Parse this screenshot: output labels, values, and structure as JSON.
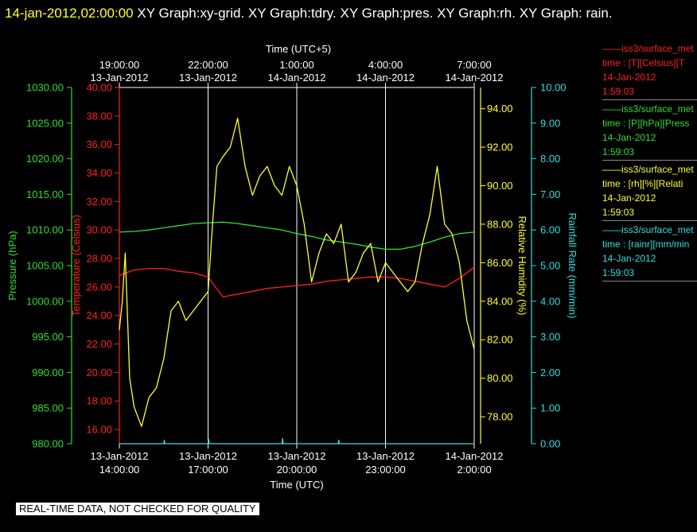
{
  "header": {
    "datetime": "14-jan-2012,02:00:00",
    "title": "XY Graph:xy-grid.  XY Graph:tdry.  XY Graph:pres.  XY Graph:rh.  XY Graph: rain."
  },
  "legend": [
    {
      "lines": [
        "——iss3/surface_met",
        "time : [T][Celsius][T",
        "14-Jan-2012",
        "1:59:03"
      ],
      "color": "#ff2020"
    },
    {
      "lines": [
        "——iss3/surface_met",
        "time : [P][hPa][Press",
        "14-Jan-2012",
        "1:59:03"
      ],
      "color": "#33dd33"
    },
    {
      "lines": [
        "——iss3/surface_met",
        "time : [rh][%][Relati",
        "14-Jan-2012",
        "1:59:03"
      ],
      "color": "#ffff33"
    },
    {
      "lines": [
        "——iss3/surface_met",
        "time : [rainr][mm/min",
        "14-Jan-2012",
        "1:59:03"
      ],
      "color": "#33dddd"
    }
  ],
  "disclaimer": "REAL-TIME DATA, NOT CHECKED FOR QUALITY",
  "colors": {
    "temperature": "#ff2020",
    "pressure": "#33dd33",
    "humidity": "#ffff33",
    "rain": "#33dddd",
    "grid": "#ffffff"
  },
  "chart_data": {
    "type": "line",
    "x_unit": "hours since 13-Jan-2012 14:00 UTC",
    "xlim": [
      0,
      12
    ],
    "x_grid": [
      3,
      6,
      9
    ],
    "bottom_axis": {
      "title": "Time (UTC)",
      "ticks": [
        {
          "x": 0,
          "date": "13-Jan-2012",
          "time": "14:00:00"
        },
        {
          "x": 3,
          "date": "13-Jan-2012",
          "time": "17:00:00"
        },
        {
          "x": 6,
          "date": "13-Jan-2012",
          "time": "20:00:00"
        },
        {
          "x": 9,
          "date": "13-Jan-2012",
          "time": "23:00:00"
        },
        {
          "x": 12,
          "date": "14-Jan-2012",
          "time": "2:00:00"
        }
      ]
    },
    "top_axis": {
      "title": "Time (UTC+5)",
      "ticks": [
        {
          "x": 0,
          "time": "19:00:00",
          "date": "13-Jan-2012"
        },
        {
          "x": 3,
          "time": "22:00:00",
          "date": "13-Jan-2012"
        },
        {
          "x": 6,
          "time": "1:00:00",
          "date": "14-Jan-2012"
        },
        {
          "x": 9,
          "time": "4:00:00",
          "date": "14-Jan-2012"
        },
        {
          "x": 12,
          "time": "7:00:00",
          "date": "14-Jan-2012"
        }
      ]
    },
    "axes": {
      "pressure": {
        "label": "Pressure (hPa)",
        "ylim": [
          980,
          1030
        ],
        "ticks": [
          "980.00",
          "985.00",
          "990.00",
          "995.00",
          "1000.00",
          "1005.00",
          "1010.00",
          "1015.00",
          "1020.00",
          "1025.00",
          "1030.00"
        ]
      },
      "temperature": {
        "label": "Temperature (Celsius)",
        "ylim": [
          15,
          40
        ],
        "ticks": [
          "16.00",
          "18.00",
          "20.00",
          "22.00",
          "24.00",
          "26.00",
          "28.00",
          "30.00",
          "32.00",
          "34.00",
          "36.00",
          "38.00",
          "40.00"
        ]
      },
      "humidity": {
        "label": "Relative Humidity (%)",
        "ylim": [
          76.6,
          95.1
        ],
        "ticks": [
          "78.00",
          "80.00",
          "82.00",
          "84.00",
          "86.00",
          "88.00",
          "90.00",
          "92.00",
          "94.00"
        ]
      },
      "rain": {
        "label": "Rainfall Rate (mm/min)",
        "ylim": [
          0,
          10
        ],
        "ticks": [
          "0.00",
          "1.00",
          "2.00",
          "3.00",
          "4.00",
          "5.00",
          "6.00",
          "7.00",
          "8.00",
          "9.00",
          "10.00"
        ]
      }
    },
    "series": [
      {
        "name": "iss3/surface_met T",
        "axis": "temperature",
        "x": [
          0,
          0.5,
          1,
          1.5,
          2,
          2.5,
          3,
          3.5,
          4,
          4.5,
          5,
          5.5,
          6,
          6.5,
          7,
          7.5,
          8,
          8.5,
          9,
          9.5,
          10,
          10.5,
          11,
          11.5,
          12
        ],
        "y": [
          26.8,
          27.2,
          27.3,
          27.3,
          27.1,
          27.0,
          26.7,
          25.3,
          25.5,
          25.7,
          25.9,
          26.0,
          26.1,
          26.2,
          26.4,
          26.5,
          26.6,
          26.7,
          26.7,
          26.6,
          26.4,
          26.2,
          26.0,
          26.6,
          27.4
        ]
      },
      {
        "name": "iss3/surface_met P",
        "axis": "pressure",
        "x": [
          0,
          0.5,
          1,
          1.5,
          2,
          2.5,
          3,
          3.5,
          4,
          4.5,
          5,
          5.5,
          6,
          6.5,
          7,
          7.5,
          8,
          8.5,
          9,
          9.5,
          10,
          10.5,
          11,
          11.5,
          12
        ],
        "y": [
          1009.7,
          1009.8,
          1010.0,
          1010.3,
          1010.6,
          1010.9,
          1011.0,
          1011.1,
          1010.9,
          1010.6,
          1010.3,
          1010.0,
          1009.5,
          1009.1,
          1008.6,
          1008.3,
          1008.0,
          1007.6,
          1007.3,
          1007.3,
          1007.7,
          1008.3,
          1009.0,
          1009.5,
          1009.7
        ]
      },
      {
        "name": "iss3/surface_met rh",
        "axis": "humidity",
        "x": [
          0,
          0.1,
          0.2,
          0.35,
          0.5,
          0.75,
          1,
          1.25,
          1.5,
          1.75,
          2,
          2.25,
          2.5,
          2.75,
          3,
          3.15,
          3.3,
          3.5,
          3.75,
          4,
          4.25,
          4.5,
          4.75,
          5,
          5.25,
          5.5,
          5.75,
          6,
          6.25,
          6.5,
          6.75,
          7,
          7.25,
          7.5,
          7.75,
          8,
          8.25,
          8.5,
          8.75,
          9,
          9.25,
          9.5,
          9.75,
          10,
          10.25,
          10.5,
          10.75,
          11,
          11.25,
          11.5,
          11.75,
          12
        ],
        "y": [
          82.5,
          84.0,
          86.5,
          80.0,
          78.5,
          77.5,
          79.0,
          79.5,
          81.0,
          83.5,
          84.0,
          83.0,
          83.5,
          84.0,
          84.5,
          88.0,
          91.0,
          91.5,
          92.0,
          93.5,
          91.0,
          89.5,
          90.5,
          91.0,
          90.0,
          89.5,
          91.0,
          90.0,
          88.0,
          85.0,
          86.5,
          87.5,
          87.0,
          88.0,
          85.0,
          85.5,
          86.5,
          87.0,
          85.0,
          86.0,
          85.5,
          85.0,
          84.5,
          85.0,
          87.0,
          88.5,
          91.0,
          88.0,
          87.5,
          86.0,
          83.0,
          81.5
        ]
      },
      {
        "name": "iss3/surface_met rainr",
        "axis": "rain",
        "x": [
          0,
          1.5,
          1.52,
          1.54,
          3.0,
          3.02,
          3.04,
          5.5,
          5.52,
          5.54,
          7.4,
          7.42,
          7.44,
          12
        ],
        "y": [
          0,
          0,
          0.1,
          0,
          0,
          0.12,
          0,
          0,
          0.15,
          0,
          0,
          0.1,
          0,
          0
        ]
      }
    ]
  }
}
